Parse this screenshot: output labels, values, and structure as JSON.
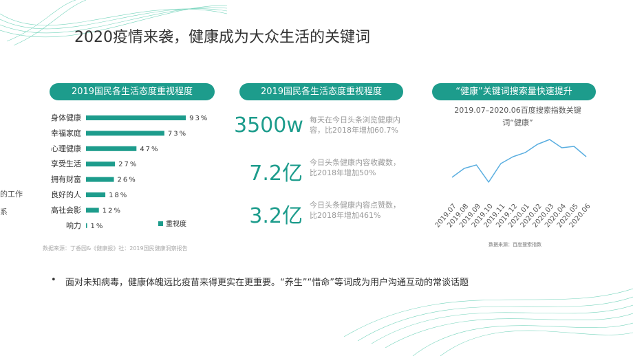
{
  "title": "2020疫情来袭，健康成为大众生活的关键词",
  "cut_text": [
    "的工作",
    "系"
  ],
  "chart_data": [
    {
      "type": "bar",
      "heading": "2019国民各生活态度重视程度",
      "categories": [
        "身体健康",
        "幸福家庭",
        "心理健康",
        "享受生活",
        "拥有财富",
        "良好的人",
        "高社会影",
        "响力"
      ],
      "series": [
        {
          "name": "重视度",
          "color": "#1d9c8c",
          "values": [
            93,
            73,
            47,
            27,
            26,
            18,
            12,
            1
          ],
          "value_labels": [
            "93%",
            "73%",
            "47%",
            "27%",
            "26%",
            "18%",
            "12%",
            "1%"
          ]
        }
      ],
      "xlim": [
        0,
        100
      ],
      "source": "数据来源：丁香园&《健康报》社：2019国民健康洞察报告"
    },
    {
      "type": "line",
      "heading": "“健康”关键词搜索量快速提升",
      "title": "2019.07–2020.06百度搜索指数关键词“健康”",
      "categories": [
        "2019.07",
        "2019.08",
        "2019.09",
        "2019.10",
        "2019.11",
        "2019.12",
        "2020.01",
        "2020.02",
        "2020.03",
        "2020.04",
        "2020.05",
        "2020.06"
      ],
      "values": [
        12,
        25,
        30,
        5,
        32,
        42,
        48,
        60,
        67,
        55,
        57,
        42
      ],
      "color": "#5aaee0",
      "source": "数据来源：百度搜索指数"
    }
  ],
  "stats": {
    "heading": "2019国民各生活态度重视程度",
    "items": [
      {
        "value": "3500w",
        "text": "每天在今日头条浏览健康内容，比2018年增加60.7%"
      },
      {
        "value": "7.2亿",
        "text": "今日头条健康内容收藏数，比2018年增加50%"
      },
      {
        "value": "3.2亿",
        "text": "今日头条健康内容点赞数，比2018年增加461%"
      }
    ]
  },
  "bullet": "面对未知病毒，健康体魄远比疫苗来得更实在更重要。“养生”“惜命”等词成为用户沟通互动的常谈话题"
}
